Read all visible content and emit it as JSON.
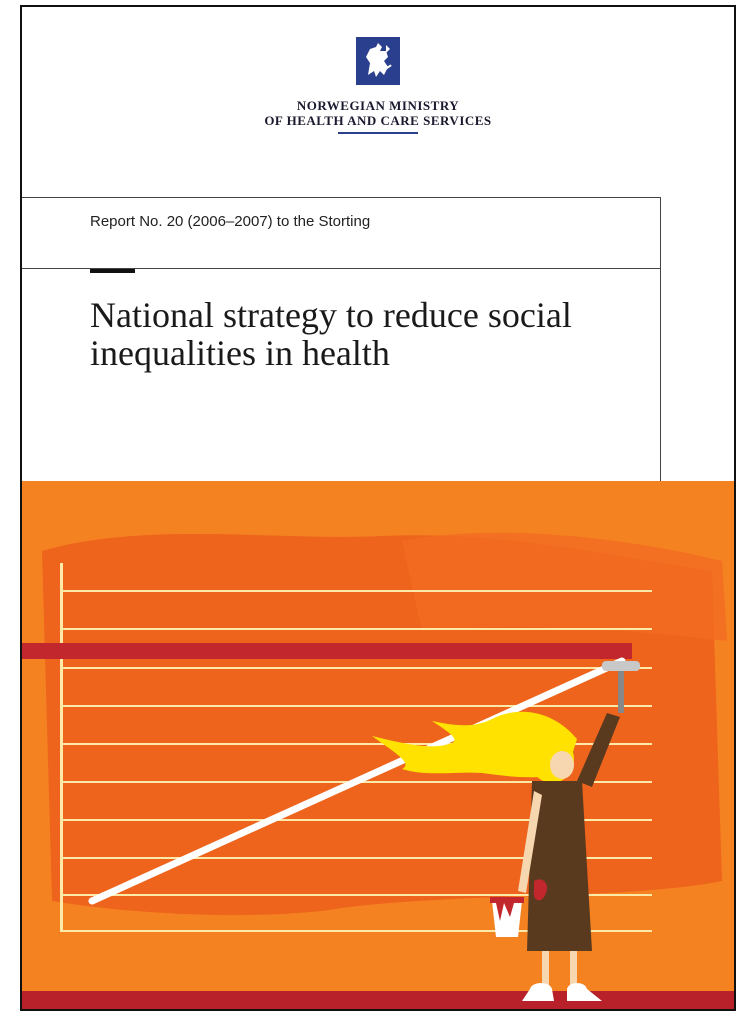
{
  "publisher": {
    "line1": "NORWEGIAN MINISTRY",
    "line2": "OF HEALTH AND CARE SERVICES"
  },
  "report": {
    "number_line": "Report No. 20 (2006–2007) to the Storting",
    "title": "National strategy to reduce social inequalities in health"
  },
  "colors": {
    "crest_blue": "#2b3f8f",
    "cover_orange": "#f58220",
    "deep_orange": "#e8551a",
    "red_band": "#c1272d",
    "grid_line": "#fde9a8",
    "paint_stroke": "#ffffff",
    "hair": "#ffe200",
    "dress": "#5a3a1e"
  },
  "illustration": {
    "description_icon": "woman-painting-rising-line-icon"
  }
}
